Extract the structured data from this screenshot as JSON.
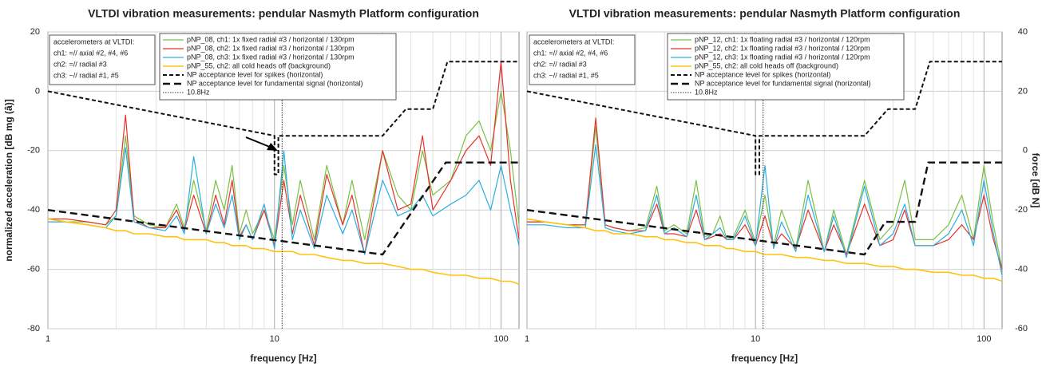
{
  "chart_data": [
    {
      "type": "line",
      "title": "VLTDI vibration measurements: pendular Nasmyth Platform configuration",
      "x_label": "frequency [Hz]",
      "y_label": "normalized acceleration [dB mg (â)]",
      "x_scale": "log",
      "xlim": [
        1,
        120
      ],
      "xticks": [
        1,
        10,
        100
      ],
      "ylim": [
        -80,
        20
      ],
      "yticks": [
        -80,
        -60,
        -40,
        -20,
        0,
        20
      ],
      "grid": true,
      "annotation": [
        "accelerometers at VLTDI:",
        "ch1: =// axial #2, #4, #6",
        "ch2: =// radial #3",
        "ch3: ~// radial #1, #5"
      ],
      "series": [
        {
          "name": "pNP_08, ch1: 1x fixed radial #3 / horizontal / 130rpm",
          "color": "#7ac143",
          "dash": "solid",
          "width": 1.2,
          "x": [
            1,
            1.2,
            1.5,
            1.8,
            2,
            2.2,
            2.4,
            2.8,
            3.3,
            3.7,
            4,
            4.4,
            5,
            5.5,
            6,
            6.5,
            7,
            7.5,
            8,
            9,
            10,
            11,
            12,
            13,
            15,
            17,
            20,
            22,
            25,
            30,
            35,
            40,
            45,
            50,
            60,
            70,
            80,
            90,
            100,
            110,
            120
          ],
          "values": [
            -43,
            -44,
            -44,
            -45,
            -42,
            -15,
            -42,
            -45,
            -46,
            -38,
            -46,
            -30,
            -47,
            -30,
            -40,
            -25,
            -48,
            -40,
            -48,
            -40,
            -50,
            -25,
            -45,
            -30,
            -50,
            -25,
            -45,
            -30,
            -50,
            -20,
            -35,
            -40,
            -20,
            -35,
            -30,
            -15,
            -10,
            -20,
            0,
            -20,
            -45
          ]
        },
        {
          "name": "pNP_08, ch2: 1x fixed radial #3 / horizontal / 130rpm",
          "color": "#e8322a",
          "dash": "solid",
          "width": 1.2,
          "x": [
            1,
            1.2,
            1.5,
            1.8,
            2,
            2.2,
            2.4,
            2.8,
            3.3,
            3.7,
            4,
            4.4,
            5,
            5.5,
            6,
            6.5,
            7,
            7.5,
            8,
            9,
            10,
            11,
            12,
            13,
            15,
            17,
            20,
            22,
            25,
            30,
            35,
            40,
            45,
            50,
            60,
            70,
            80,
            90,
            100,
            110,
            120
          ],
          "values": [
            -43,
            -43,
            -44,
            -45,
            -40,
            -8,
            -43,
            -46,
            -46,
            -40,
            -47,
            -35,
            -48,
            -35,
            -45,
            -30,
            -49,
            -45,
            -50,
            -40,
            -52,
            -30,
            -48,
            -35,
            -52,
            -28,
            -45,
            -35,
            -55,
            -20,
            -40,
            -38,
            -15,
            -40,
            -30,
            -20,
            -15,
            -25,
            10,
            -30,
            -50
          ]
        },
        {
          "name": "pNP_08, ch3: 1x fixed radial #3 / horizontal / 130rpm",
          "color": "#29aee3",
          "dash": "solid",
          "width": 1.2,
          "x": [
            1,
            1.2,
            1.5,
            1.8,
            2,
            2.2,
            2.4,
            2.8,
            3.3,
            3.7,
            4,
            4.4,
            5,
            5.5,
            6,
            6.5,
            7,
            7.5,
            8,
            9,
            10,
            11,
            12,
            13,
            15,
            17,
            20,
            22,
            25,
            30,
            35,
            40,
            45,
            50,
            60,
            70,
            80,
            90,
            100,
            110,
            120
          ],
          "values": [
            -44,
            -44,
            -45,
            -46,
            -42,
            -19,
            -44,
            -46,
            -47,
            -42,
            -48,
            -22,
            -48,
            -38,
            -46,
            -35,
            -50,
            -45,
            -50,
            -38,
            -53,
            -20,
            -50,
            -40,
            -53,
            -35,
            -48,
            -40,
            -55,
            -30,
            -42,
            -40,
            -35,
            -42,
            -38,
            -35,
            -30,
            -40,
            -25,
            -40,
            -52
          ]
        },
        {
          "name": "pNP_55, ch2: all cold heads off (background)",
          "color": "#ffc20e",
          "dash": "solid",
          "width": 1.6,
          "x": [
            1,
            1.2,
            1.5,
            1.8,
            2,
            2.2,
            2.4,
            2.8,
            3.3,
            3.7,
            4,
            4.4,
            5,
            5.5,
            6,
            6.5,
            7,
            7.5,
            8,
            9,
            10,
            11,
            12,
            13,
            15,
            17,
            20,
            22,
            25,
            30,
            35,
            40,
            45,
            50,
            60,
            70,
            80,
            90,
            100,
            110,
            120
          ],
          "values": [
            -43,
            -44,
            -45,
            -46,
            -47,
            -47,
            -48,
            -48,
            -49,
            -49,
            -50,
            -50,
            -50,
            -51,
            -51,
            -52,
            -52,
            -52,
            -53,
            -53,
            -54,
            -54,
            -54,
            -55,
            -55,
            -56,
            -57,
            -57,
            -58,
            -58,
            -59,
            -60,
            -60,
            -61,
            -62,
            -62,
            -63,
            -63,
            -64,
            -64,
            -65
          ]
        },
        {
          "name": "NP acceptance level for spikes (horizontal)",
          "color": "#111111",
          "dash": "dashed",
          "width": 2,
          "x": [
            1,
            10,
            10,
            10.4,
            10.4,
            11,
            30,
            38,
            50,
            58,
            120
          ],
          "values": [
            0,
            -15,
            -28,
            -28,
            -15,
            -15,
            -15,
            -6,
            -6,
            10,
            10
          ]
        },
        {
          "name": "NP acceptance level for fundamental signal (horizontal)",
          "color": "#111111",
          "dash": "longdash",
          "width": 2.4,
          "x": [
            1,
            30,
            57,
            120
          ],
          "values": [
            -40,
            -55,
            -24,
            -24
          ]
        },
        {
          "name": "10.8Hz",
          "color": "#333333",
          "dash": "dotted",
          "width": 1,
          "x": [
            10.8,
            10.8
          ],
          "values": [
            -80,
            20
          ]
        }
      ]
    },
    {
      "type": "line",
      "title": "VLTDI vibration measurements: pendular Nasmyth Platform configuration",
      "x_label": "frequency [Hz]",
      "y2_label": "force [dB N]",
      "x_scale": "log",
      "xlim": [
        1,
        120
      ],
      "xticks": [
        1,
        10,
        100
      ],
      "y2lim": [
        -60,
        40
      ],
      "y2ticks": [
        -60,
        -40,
        -20,
        0,
        20,
        40
      ],
      "grid": true,
      "annotation": [
        "accelerometers at VLTDI:",
        "ch1: =// axial #2, #4, #6",
        "ch2: =// radial #3",
        "ch3: ~// radial #1, #5"
      ],
      "series": [
        {
          "name": "pNP_12, ch1: 1x floating radial #3 / horizontal / 120rpm",
          "color": "#7ac143",
          "dash": "solid",
          "width": 1.2,
          "axis": "y2",
          "x": [
            1,
            1.2,
            1.5,
            1.8,
            2,
            2.2,
            2.4,
            2.8,
            3.3,
            3.7,
            4,
            4.4,
            5,
            5.5,
            6,
            6.5,
            7,
            7.5,
            8,
            9,
            10,
            11,
            12,
            13,
            15,
            17,
            20,
            22,
            25,
            30,
            35,
            40,
            45,
            50,
            60,
            70,
            80,
            90,
            100,
            110,
            120
          ],
          "values": [
            -24,
            -24,
            -25,
            -25,
            8,
            -25,
            -26,
            -27,
            -26,
            -12,
            -27,
            -25,
            -28,
            -10,
            -29,
            -28,
            -22,
            -30,
            -29,
            -20,
            -31,
            -15,
            -32,
            -20,
            -33,
            -10,
            -34,
            -20,
            -35,
            -10,
            -30,
            -25,
            -10,
            -30,
            -30,
            -25,
            -15,
            -30,
            -5,
            -25,
            -40
          ]
        },
        {
          "name": "pNP_12, ch2: 1x floating radial #3 / horizontal / 120rpm",
          "color": "#e8322a",
          "dash": "solid",
          "width": 1.2,
          "axis": "y2",
          "x": [
            1,
            1.2,
            1.5,
            1.8,
            2,
            2.2,
            2.4,
            2.8,
            3.3,
            3.7,
            4,
            4.4,
            5,
            5.5,
            6,
            6.5,
            7,
            7.5,
            8,
            9,
            10,
            11,
            12,
            13,
            15,
            17,
            20,
            22,
            25,
            30,
            35,
            40,
            45,
            50,
            60,
            70,
            80,
            90,
            100,
            110,
            120
          ],
          "values": [
            -24,
            -24,
            -25,
            -25,
            11,
            -25,
            -26,
            -27,
            -27,
            -18,
            -28,
            -28,
            -29,
            -20,
            -30,
            -29,
            -28,
            -30,
            -30,
            -25,
            -32,
            -22,
            -32,
            -28,
            -33,
            -20,
            -34,
            -25,
            -35,
            -18,
            -32,
            -30,
            -20,
            -32,
            -32,
            -30,
            -25,
            -30,
            -15,
            -30,
            -40
          ]
        },
        {
          "name": "pNP_12, ch3: 1x floating radial #3 / horizontal / 120rpm",
          "color": "#29aee3",
          "dash": "solid",
          "width": 1.2,
          "axis": "y2",
          "x": [
            1,
            1.2,
            1.5,
            1.8,
            2,
            2.2,
            2.4,
            2.8,
            3.3,
            3.7,
            4,
            4.4,
            5,
            5.5,
            6,
            6.5,
            7,
            7.5,
            8,
            9,
            10,
            11,
            12,
            13,
            15,
            17,
            20,
            22,
            25,
            30,
            35,
            40,
            45,
            50,
            60,
            70,
            80,
            90,
            100,
            110,
            120
          ],
          "values": [
            -25,
            -25,
            -26,
            -26,
            2,
            -26,
            -27,
            -28,
            -27,
            -15,
            -28,
            -26,
            -29,
            -15,
            -30,
            -28,
            -26,
            -30,
            -30,
            -22,
            -32,
            -5,
            -33,
            -24,
            -34,
            -15,
            -34,
            -22,
            -36,
            -12,
            -32,
            -28,
            -18,
            -32,
            -32,
            -28,
            -20,
            -32,
            -10,
            -28,
            -42
          ]
        },
        {
          "name": "pNP_55, ch2: all cold heads off (background)",
          "color": "#ffc20e",
          "dash": "solid",
          "width": 1.6,
          "axis": "y2",
          "x": [
            1,
            1.2,
            1.5,
            1.8,
            2,
            2.2,
            2.4,
            2.8,
            3.3,
            3.7,
            4,
            4.4,
            5,
            5.5,
            6,
            6.5,
            7,
            7.5,
            8,
            9,
            10,
            11,
            12,
            13,
            15,
            17,
            20,
            22,
            25,
            30,
            35,
            40,
            45,
            50,
            60,
            70,
            80,
            90,
            100,
            110,
            120
          ],
          "values": [
            -23,
            -24,
            -25,
            -26,
            -27,
            -27,
            -28,
            -28,
            -29,
            -29,
            -30,
            -30,
            -31,
            -31,
            -32,
            -32,
            -32,
            -33,
            -33,
            -34,
            -34,
            -35,
            -35,
            -35,
            -36,
            -36,
            -37,
            -37,
            -38,
            -38,
            -39,
            -39,
            -40,
            -40,
            -41,
            -41,
            -42,
            -42,
            -43,
            -43,
            -44
          ]
        },
        {
          "name": "NP acceptance level for spikes (horizontal)",
          "color": "#111111",
          "dash": "dashed",
          "width": 2,
          "axis": "y2",
          "x": [
            1,
            10,
            10,
            10.4,
            10.4,
            11,
            30,
            38,
            50,
            58,
            120
          ],
          "values": [
            20,
            5,
            -8,
            -8,
            5,
            5,
            5,
            14,
            14,
            30,
            30
          ]
        },
        {
          "name": "NP acceptance level for fundamental signal (horizontal)",
          "color": "#111111",
          "dash": "longdash",
          "width": 2.4,
          "axis": "y2",
          "x": [
            1,
            30,
            37,
            50,
            57,
            120
          ],
          "values": [
            -20,
            -35,
            -24,
            -24,
            -4,
            -4
          ]
        },
        {
          "name": "10.8Hz",
          "color": "#333333",
          "dash": "dotted",
          "width": 1,
          "axis": "y2",
          "x": [
            10.8,
            10.8
          ],
          "values": [
            -60,
            40
          ]
        }
      ]
    }
  ]
}
